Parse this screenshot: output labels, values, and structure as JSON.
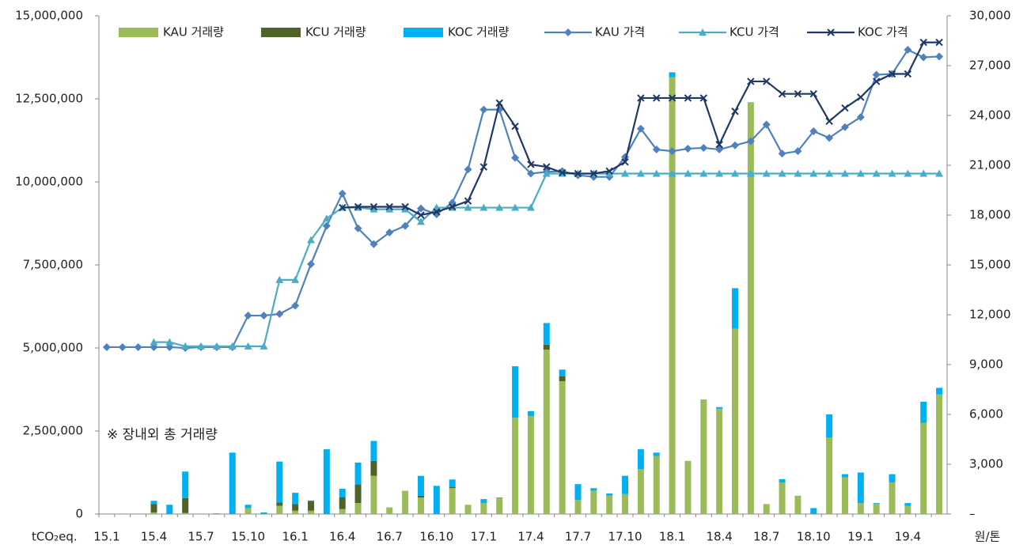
{
  "chart_data": {
    "type": "bar",
    "stacked": true,
    "y_axis_label": "tCO₂eq.",
    "y2_axis_label": "원/톤",
    "annotation": "※ 장내외 총 거래량",
    "categories": [
      "15.1",
      null,
      null,
      "15.4",
      null,
      null,
      "15.7",
      null,
      null,
      "15.10",
      null,
      null,
      "16.1",
      null,
      null,
      "16.4",
      null,
      null,
      "16.7",
      null,
      null,
      "16.10",
      null,
      null,
      "17.1",
      null,
      null,
      "17.4",
      null,
      null,
      "17.7",
      null,
      null,
      "17.10",
      null,
      null,
      "18.1",
      null,
      null,
      "18.4",
      null,
      null,
      "18.7",
      null,
      null,
      "18.10",
      null,
      null,
      "19.1",
      null,
      null,
      "19.4",
      null,
      null
    ],
    "ylim": [
      0,
      15000000
    ],
    "yticks": [
      0,
      {
        "value": 2500000,
        "label": "2,500,000"
      },
      {
        "value": 5000000,
        "label": "5,000,000"
      },
      {
        "value": 7500000,
        "label": "7,500,000"
      },
      {
        "value": 10000000,
        "label": "10,000,000"
      },
      {
        "value": 12500000,
        "label": "12,500,000"
      },
      {
        "value": 15000000,
        "label": "15,000,000"
      }
    ],
    "y2lim": [
      0,
      30000
    ],
    "y2ticks": [
      {
        "value": 0,
        "label": "–"
      },
      {
        "value": 3000,
        "label": "3,000"
      },
      {
        "value": 6000,
        "label": "6,000"
      },
      {
        "value": 9000,
        "label": "9,000"
      },
      {
        "value": 12000,
        "label": "12,000"
      },
      {
        "value": 15000,
        "label": "15,000"
      },
      {
        "value": 18000,
        "label": "18,000"
      },
      {
        "value": 21000,
        "label": "21,000"
      },
      {
        "value": 24000,
        "label": "24,000"
      },
      {
        "value": 27000,
        "label": "27,000"
      },
      {
        "value": 30000,
        "label": "30,000"
      }
    ],
    "grid": false,
    "legend": "top",
    "series": [
      {
        "name": "KAU 거래량",
        "type": "bar",
        "color": "#9bbb59",
        "values": [
          0,
          0,
          0,
          50000,
          0,
          30000,
          0,
          0,
          0,
          180000,
          0,
          250000,
          100000,
          100000,
          0,
          150000,
          330000,
          1150000,
          200000,
          700000,
          500000,
          0,
          780000,
          280000,
          330000,
          480000,
          2900000,
          2950000,
          4950000,
          4000000,
          420000,
          700000,
          560000,
          600000,
          1350000,
          1750000,
          13150000,
          1600000,
          3450000,
          3170000,
          5580000,
          12400000,
          300000,
          950000,
          550000,
          0,
          2300000,
          1100000,
          330000,
          300000,
          950000,
          250000,
          2750000,
          3600000
        ]
      },
      {
        "name": "KCU 거래량",
        "type": "bar",
        "color": "#4f6228",
        "values": [
          0,
          0,
          0,
          250000,
          0,
          450000,
          0,
          0,
          0,
          0,
          0,
          100000,
          200000,
          280000,
          0,
          350000,
          560000,
          450000,
          0,
          0,
          50000,
          0,
          30000,
          0,
          0,
          0,
          0,
          0,
          150000,
          150000,
          0,
          0,
          0,
          0,
          0,
          0,
          0,
          0,
          0,
          0,
          0,
          0,
          0,
          0,
          0,
          0,
          0,
          0,
          0,
          0,
          0,
          0,
          0,
          0
        ]
      },
      {
        "name": "KOC 거래량",
        "type": "bar",
        "color": "#00b0f0",
        "values": [
          0,
          0,
          0,
          100000,
          280000,
          800000,
          0,
          20000,
          1850000,
          100000,
          50000,
          1230000,
          340000,
          30000,
          1950000,
          260000,
          660000,
          600000,
          0,
          0,
          600000,
          850000,
          230000,
          0,
          120000,
          20000,
          1550000,
          150000,
          650000,
          200000,
          480000,
          80000,
          60000,
          550000,
          600000,
          100000,
          150000,
          0,
          0,
          50000,
          1220000,
          0,
          0,
          100000,
          0,
          180000,
          700000,
          100000,
          920000,
          30000,
          250000,
          80000,
          630000,
          200000
        ]
      },
      {
        "name": "KAU 가격",
        "type": "line",
        "axis": "y2",
        "marker": "diamond",
        "color": "#4f81bd",
        "values": [
          10050,
          10050,
          10050,
          10050,
          10050,
          10000,
          10050,
          10050,
          10050,
          11950,
          11950,
          12050,
          12550,
          15050,
          17350,
          19300,
          17200,
          16250,
          16950,
          17350,
          18400,
          18050,
          18750,
          20750,
          24350,
          24350,
          21450,
          20500,
          20600,
          20650,
          20400,
          20300,
          20300,
          21500,
          23200,
          21950,
          21850,
          22000,
          22050,
          21950,
          22200,
          22450,
          23450,
          21700,
          21850,
          23050,
          22650,
          23300,
          23900,
          26450,
          26500,
          27950,
          27500,
          27550
        ]
      },
      {
        "name": "KCU 가격",
        "type": "line",
        "axis": "y2",
        "marker": "triangle",
        "color": "#4bacc6",
        "values": [
          null,
          null,
          null,
          10350,
          10350,
          10100,
          10100,
          10100,
          10100,
          10100,
          10100,
          14100,
          14100,
          16500,
          17800,
          18450,
          18450,
          18350,
          18350,
          18350,
          17600,
          18450,
          18450,
          18450,
          18450,
          18450,
          18450,
          18450,
          20500,
          20500,
          20500,
          20500,
          20500,
          20500,
          20500,
          20500,
          20500,
          20500,
          20500,
          20500,
          20500,
          20500,
          20500,
          20500,
          20500,
          20500,
          20500,
          20500,
          20500,
          20500,
          20500,
          20500,
          20500,
          20500
        ]
      },
      {
        "name": "KOC 가격",
        "type": "line",
        "axis": "y2",
        "marker": "x",
        "color": "#1f3864",
        "values": [
          null,
          null,
          null,
          null,
          null,
          null,
          null,
          null,
          null,
          null,
          null,
          null,
          null,
          null,
          null,
          18450,
          18500,
          18500,
          18500,
          18500,
          18000,
          18200,
          18500,
          18850,
          20900,
          24750,
          23350,
          21050,
          20900,
          20550,
          20500,
          20500,
          20650,
          21200,
          25050,
          25050,
          25050,
          25050,
          25050,
          22250,
          24250,
          26050,
          26050,
          25300,
          25300,
          25300,
          23650,
          24450,
          25100,
          26050,
          26500,
          26500,
          28400,
          28400
        ]
      }
    ]
  }
}
